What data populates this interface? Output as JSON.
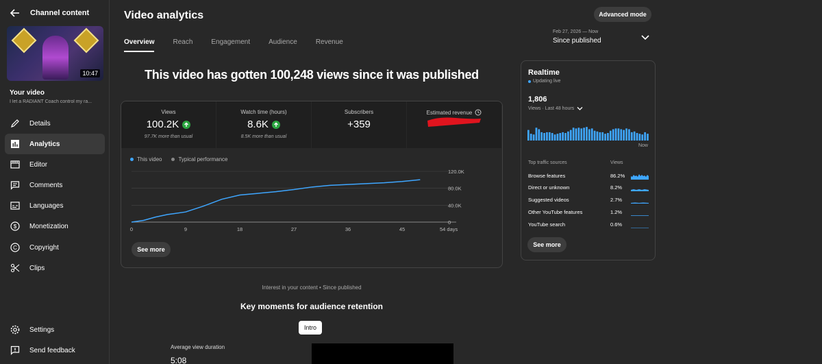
{
  "sidebar": {
    "header_title": "Channel content",
    "thumbnail_duration": "10:47",
    "your_video_label": "Your video",
    "video_title": "I let a RADIANT Coach control my ra...",
    "nav": [
      {
        "label": "Details",
        "icon": "pencil-icon"
      },
      {
        "label": "Analytics",
        "icon": "analytics-icon",
        "active": true
      },
      {
        "label": "Editor",
        "icon": "editor-icon"
      },
      {
        "label": "Comments",
        "icon": "comments-icon"
      },
      {
        "label": "Languages",
        "icon": "languages-icon"
      },
      {
        "label": "Monetization",
        "icon": "dollar-icon"
      },
      {
        "label": "Copyright",
        "icon": "copyright-icon"
      },
      {
        "label": "Clips",
        "icon": "scissors-icon"
      }
    ],
    "settings_label": "Settings",
    "feedback_label": "Send feedback"
  },
  "header": {
    "title": "Video analytics",
    "advanced_mode_label": "Advanced mode",
    "tabs": [
      "Overview",
      "Reach",
      "Engagement",
      "Audience",
      "Revenue"
    ],
    "active_tab": "Overview",
    "date_range": "Feb 27, 2026 — Now",
    "date_preset": "Since published"
  },
  "headline": "This video has gotten 100,248 views since it was published",
  "metrics": [
    {
      "label": "Views",
      "value": "100.2K",
      "trend_up": true,
      "sub": "97.7K more than usual"
    },
    {
      "label": "Watch time (hours)",
      "value": "8.6K",
      "trend_up": true,
      "sub": "8.5K more than usual"
    },
    {
      "label": "Subscribers",
      "value": "+359",
      "trend_up": false,
      "sub": ""
    },
    {
      "label": "Estimated revenue",
      "value": "",
      "trend_up": false,
      "sub": ""
    }
  ],
  "legend": {
    "this_video": "This video",
    "typical": "Typical performance"
  },
  "colors": {
    "accent": "#3ea6ff",
    "up": "#2ba640",
    "redaction": "#e0141e"
  },
  "chart_data": {
    "type": "line",
    "x_ticks": [
      "0",
      "9",
      "18",
      "27",
      "36",
      "45",
      "54 days"
    ],
    "y_ticks": [
      "0",
      "40.0K",
      "80.0K",
      "120.0K"
    ],
    "xlim": [
      0,
      54
    ],
    "ylim": [
      0,
      120000
    ],
    "grid": true,
    "series": [
      {
        "name": "This video",
        "x": [
          0,
          2,
          4,
          6,
          9,
          12,
          15,
          18,
          21,
          24,
          27,
          30,
          33,
          36,
          39,
          42,
          45,
          48
        ],
        "y": [
          0,
          4000,
          12000,
          18000,
          24000,
          38000,
          54000,
          64000,
          68000,
          72000,
          77000,
          83000,
          87000,
          89000,
          91000,
          93000,
          96000,
          100248
        ]
      }
    ]
  },
  "see_more_label": "See more",
  "realtime": {
    "title": "Realtime",
    "status": "Updating live",
    "count": "1,806",
    "period": "Views · Last 48 hours",
    "now_label": "Now",
    "bars": [
      0.7,
      0.45,
      0.4,
      0.85,
      0.75,
      0.55,
      0.5,
      0.55,
      0.55,
      0.5,
      0.4,
      0.45,
      0.5,
      0.55,
      0.5,
      0.6,
      0.7,
      0.85,
      0.8,
      0.85,
      0.8,
      0.85,
      0.9,
      0.75,
      0.8,
      0.65,
      0.6,
      0.55,
      0.55,
      0.45,
      0.5,
      0.65,
      0.75,
      0.8,
      0.8,
      0.75,
      0.7,
      0.8,
      0.75,
      0.55,
      0.6,
      0.5,
      0.45,
      0.4,
      0.55,
      0.45
    ],
    "sources_header": "Top traffic sources",
    "views_header": "Views",
    "sources": [
      {
        "name": "Browse features",
        "pct": "86.2%"
      },
      {
        "name": "Direct or unknown",
        "pct": "8.2%"
      },
      {
        "name": "Suggested videos",
        "pct": "2.7%"
      },
      {
        "name": "Other YouTube features",
        "pct": "1.2%"
      },
      {
        "name": "YouTube search",
        "pct": "0.6%"
      }
    ]
  },
  "interest_label": "Interest in your content • Since published",
  "key_moments_title": "Key moments for audience retention",
  "intro_label": "Intro",
  "avg_view_duration_label": "Average view duration",
  "avg_view_duration_value": "5:08"
}
